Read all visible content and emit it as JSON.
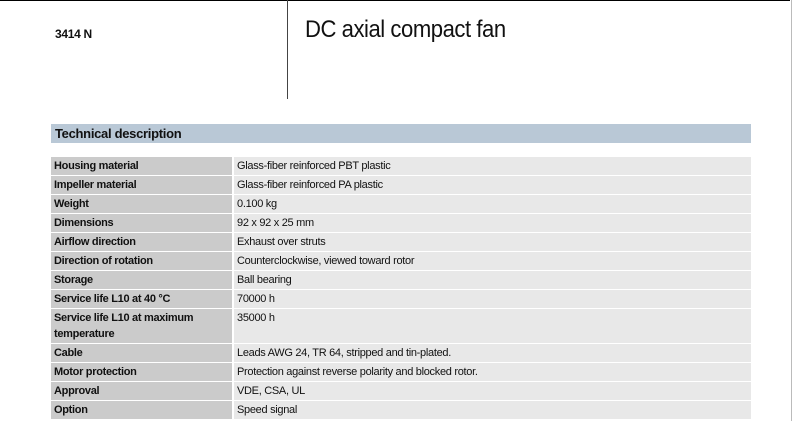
{
  "header": {
    "model": "3414 N",
    "title": "DC axial compact fan"
  },
  "section": {
    "title": "Technical description"
  },
  "specs": [
    {
      "label": "Housing material",
      "value": "Glass-fiber reinforced PBT plastic"
    },
    {
      "label": "Impeller material",
      "value": "Glass-fiber reinforced PA plastic"
    },
    {
      "label": "Weight",
      "value": "0.100 kg"
    },
    {
      "label": "Dimensions",
      "value": "92 x 92 x 25 mm"
    },
    {
      "label": "Airflow direction",
      "value": "Exhaust over struts"
    },
    {
      "label": "Direction of rotation",
      "value": "Counterclockwise, viewed toward rotor"
    },
    {
      "label": "Storage",
      "value": "Ball bearing"
    },
    {
      "label": "Service life L10 at 40 °C",
      "value": "70000 h"
    },
    {
      "label": "Service life L10 at maximum temperature",
      "value": "35000 h"
    },
    {
      "label": "Cable",
      "value": "Leads AWG 24, TR 64, stripped and tin-plated."
    },
    {
      "label": "Motor protection",
      "value": "Protection against reverse polarity and blocked rotor."
    },
    {
      "label": "Approval",
      "value": "VDE, CSA, UL"
    },
    {
      "label": "Option",
      "value": "Speed signal"
    }
  ]
}
